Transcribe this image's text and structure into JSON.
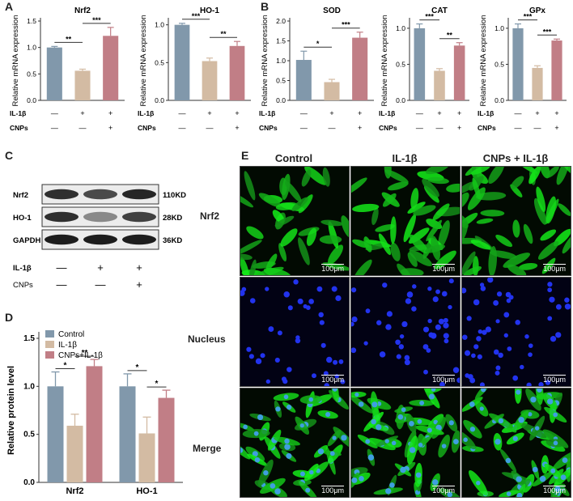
{
  "panels": {
    "a": "A",
    "b": "B",
    "c": "C",
    "d": "D",
    "e": "E"
  },
  "bar_ylabel": "Relative mRNA expression",
  "treatment_labels": {
    "il1b": "IL-1β",
    "cnps": "CNPs"
  },
  "signs": {
    "minus": "—",
    "plus": "+"
  },
  "conditions": [
    {
      "il1b": "minus",
      "cnps": "minus"
    },
    {
      "il1b": "plus",
      "cnps": "minus"
    },
    {
      "il1b": "plus",
      "cnps": "plus"
    }
  ],
  "colors": {
    "control": "#8198ab",
    "il1b": "#d3bba3",
    "cnps": "#c17e86"
  },
  "chart_data": [
    {
      "id": "nrf2",
      "type": "bar",
      "title": "Nrf2",
      "values": [
        1.0,
        0.56,
        1.22
      ],
      "errors": [
        0.02,
        0.03,
        0.16
      ],
      "ylim": [
        0,
        1.5
      ],
      "yticks": [
        "0.0",
        "0.5",
        "1.0",
        "1.5"
      ],
      "sig": [
        {
          "from": 0,
          "to": 1,
          "label": "**"
        },
        {
          "from": 1,
          "to": 2,
          "label": "***"
        }
      ]
    },
    {
      "id": "ho1",
      "type": "bar",
      "title": "HO-1",
      "values": [
        1.0,
        0.52,
        0.72
      ],
      "errors": [
        0.02,
        0.04,
        0.06
      ],
      "ylim": [
        0,
        1.05
      ],
      "yticks": [
        "0.0",
        "0.5",
        "1.0"
      ],
      "sig": [
        {
          "from": 0,
          "to": 1,
          "label": "***"
        },
        {
          "from": 1,
          "to": 2,
          "label": "**"
        }
      ]
    },
    {
      "id": "sod",
      "type": "bar",
      "title": "SOD",
      "values": [
        1.02,
        0.46,
        1.58
      ],
      "errors": [
        0.22,
        0.07,
        0.14
      ],
      "ylim": [
        0,
        2.0
      ],
      "yticks": [
        "0.0",
        "0.5",
        "1.0",
        "1.5",
        "2.0"
      ],
      "sig": [
        {
          "from": 0,
          "to": 1,
          "label": "*"
        },
        {
          "from": 1,
          "to": 2,
          "label": "***"
        }
      ]
    },
    {
      "id": "cat",
      "type": "bar",
      "title": "CAT",
      "values": [
        1.0,
        0.41,
        0.76
      ],
      "errors": [
        0.06,
        0.03,
        0.04
      ],
      "ylim": [
        0,
        1.1
      ],
      "yticks": [
        "0.0",
        "0.5",
        "1.0"
      ],
      "sig": [
        {
          "from": 0,
          "to": 1,
          "label": "***"
        },
        {
          "from": 1,
          "to": 2,
          "label": "**"
        }
      ]
    },
    {
      "id": "gpx",
      "type": "bar",
      "title": "GPx",
      "values": [
        1.0,
        0.45,
        0.83
      ],
      "errors": [
        0.06,
        0.03,
        0.02
      ],
      "ylim": [
        0,
        1.1
      ],
      "yticks": [
        "0.0",
        "0.5",
        "1.0"
      ],
      "sig": [
        {
          "from": 0,
          "to": 1,
          "label": "***"
        },
        {
          "from": 1,
          "to": 2,
          "label": "***"
        }
      ]
    },
    {
      "id": "protein",
      "type": "bar",
      "title": "",
      "ylabel": "Relative protein level",
      "categories": [
        "Nrf2",
        "HO-1"
      ],
      "series": [
        {
          "name": "Control",
          "values": [
            1.0,
            1.0
          ],
          "errors": [
            0.15,
            0.13
          ]
        },
        {
          "name": "IL-1β",
          "values": [
            0.59,
            0.51
          ],
          "errors": [
            0.12,
            0.17
          ]
        },
        {
          "name": "CNPs+IL-1β",
          "values": [
            1.21,
            0.88
          ],
          "errors": [
            0.07,
            0.08
          ]
        }
      ],
      "ylim": [
        0,
        1.5
      ],
      "yticks": [
        "0.0",
        "0.5",
        "1.0",
        "1.5"
      ],
      "legend": "top-left",
      "sig": [
        {
          "cat": 0,
          "from": 0,
          "to": 1,
          "label": "*"
        },
        {
          "cat": 0,
          "from": 1,
          "to": 2,
          "label": "**"
        },
        {
          "cat": 1,
          "from": 0,
          "to": 1,
          "label": "*"
        },
        {
          "cat": 1,
          "from": 1,
          "to": 2,
          "label": "*"
        }
      ]
    }
  ],
  "western": {
    "bands": [
      {
        "name": "Nrf2",
        "kd": "110KD",
        "intensity": [
          0.85,
          0.7,
          0.9
        ]
      },
      {
        "name": "HO-1",
        "kd": "28KD",
        "intensity": [
          0.85,
          0.35,
          0.75
        ]
      },
      {
        "name": "GAPDH",
        "kd": "36KD",
        "intensity": [
          0.95,
          0.95,
          0.95
        ]
      }
    ]
  },
  "if_panel": {
    "columns": [
      "Control",
      "IL-1β",
      "CNPs + IL-1β"
    ],
    "rows": [
      "Nrf2",
      "Nucleus",
      "Merge"
    ],
    "scale": "100μm"
  }
}
